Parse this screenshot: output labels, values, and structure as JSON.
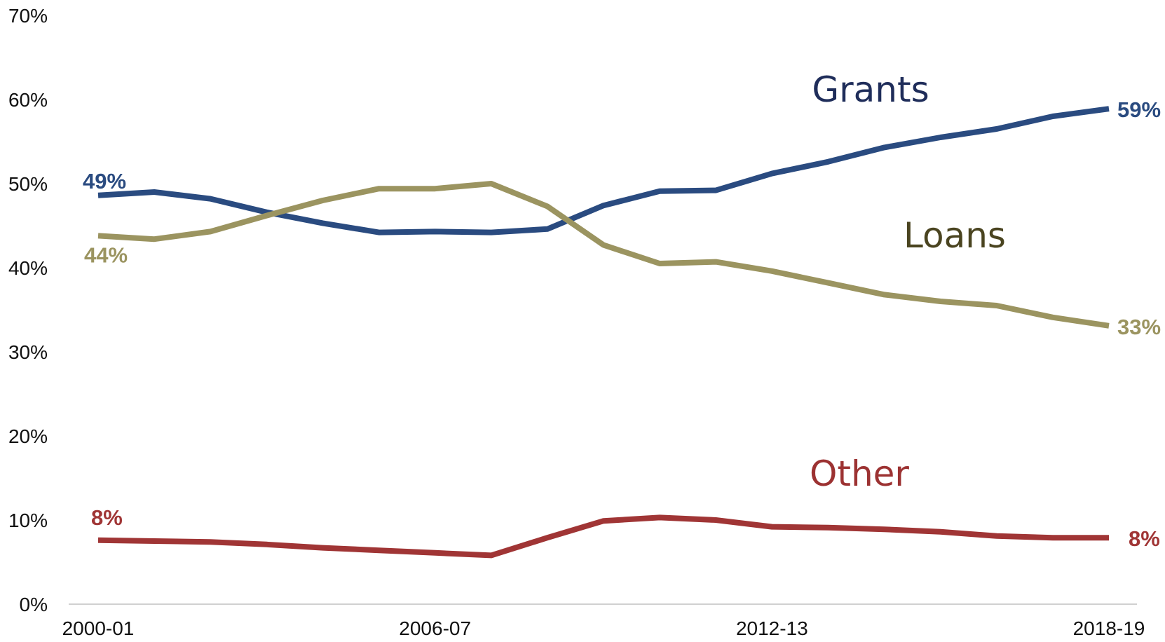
{
  "chart_data": {
    "type": "line",
    "title": "",
    "xlabel": "",
    "ylabel": "",
    "ylim": [
      0,
      70
    ],
    "y_tick_labels": [
      "0%",
      "10%",
      "20%",
      "30%",
      "40%",
      "50%",
      "60%",
      "70%"
    ],
    "y_ticks": [
      0,
      10,
      20,
      30,
      40,
      50,
      60,
      70
    ],
    "x": [
      "2000-01",
      "2001-02",
      "2002-03",
      "2003-04",
      "2004-05",
      "2005-06",
      "2006-07",
      "2007-08",
      "2008-09",
      "2009-10",
      "2010-11",
      "2011-12",
      "2012-13",
      "2013-14",
      "2014-15",
      "2015-16",
      "2016-17",
      "2017-18",
      "2018-19"
    ],
    "x_tick_labels": [
      "2000-01",
      "2006-07",
      "2012-13",
      "2018-19"
    ],
    "grid": false,
    "legend": "none (series named by in-chart labels)",
    "series": [
      {
        "name": "Grants",
        "color": "#2a4b80",
        "label_color": "#1f2d5a",
        "values": [
          48.6,
          49.0,
          48.2,
          46.6,
          45.3,
          44.2,
          44.3,
          44.2,
          44.6,
          47.4,
          49.1,
          49.2,
          51.2,
          52.6,
          54.3,
          55.5,
          56.5,
          58.0,
          58.9
        ],
        "start_label": "49%",
        "end_label": "59%"
      },
      {
        "name": "Loans",
        "color": "#9b9460",
        "label_color": "#4a4420",
        "values": [
          43.8,
          43.4,
          44.3,
          46.2,
          48.0,
          49.4,
          49.4,
          50.0,
          47.3,
          42.7,
          40.5,
          40.7,
          39.6,
          38.2,
          36.8,
          36.0,
          35.5,
          34.1,
          33.1
        ],
        "start_label": "44%",
        "end_label": "33%"
      },
      {
        "name": "Other",
        "color": "#a03535",
        "label_color": "#9c3232",
        "values": [
          7.6,
          7.5,
          7.4,
          7.1,
          6.7,
          6.4,
          6.1,
          5.8,
          7.9,
          9.9,
          10.3,
          10.0,
          9.2,
          9.1,
          8.9,
          8.6,
          8.1,
          7.9,
          7.9
        ],
        "start_label": "8%",
        "end_label": "8%"
      }
    ]
  }
}
